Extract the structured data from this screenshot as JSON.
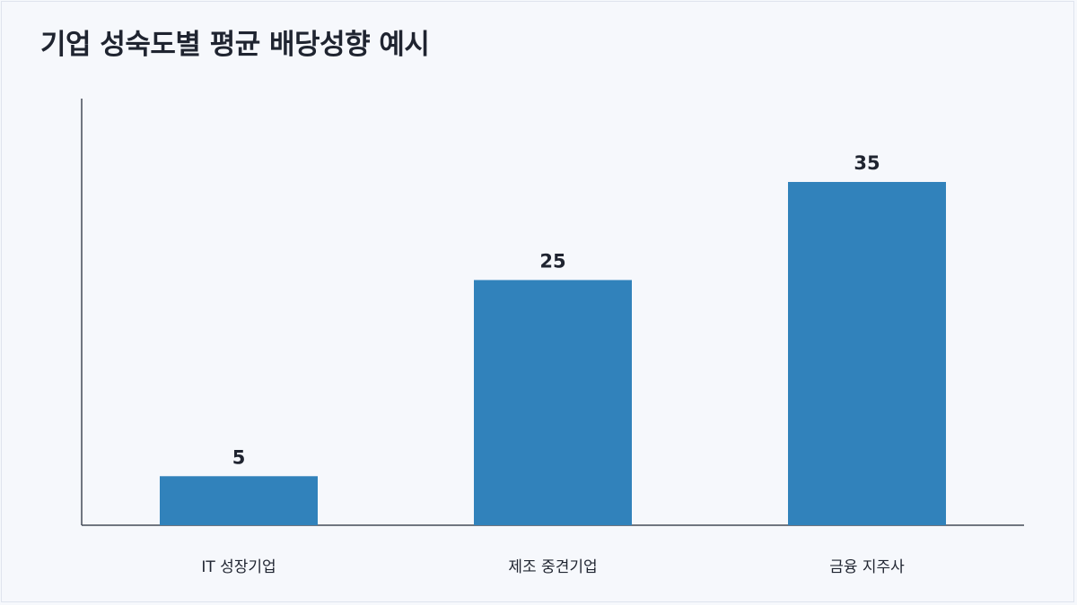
{
  "title": "기업 성숙도별 평균 배당성향 예시",
  "colors": {
    "background": "#f6f8fc",
    "bar": "#3182bb",
    "axis": "#444a57",
    "text": "#1f2430"
  },
  "chart_data": {
    "type": "bar",
    "title": "기업 성숙도별 평균 배당성향 예시",
    "categories": [
      "IT 성장기업",
      "제조 중견기업",
      "금융 지주사"
    ],
    "values": [
      5,
      25,
      35
    ],
    "data_labels": [
      "5",
      "25",
      "35"
    ],
    "xlabel": "",
    "ylabel": "",
    "ylim": [
      0,
      43.5
    ],
    "grid": false,
    "legend": "none"
  }
}
